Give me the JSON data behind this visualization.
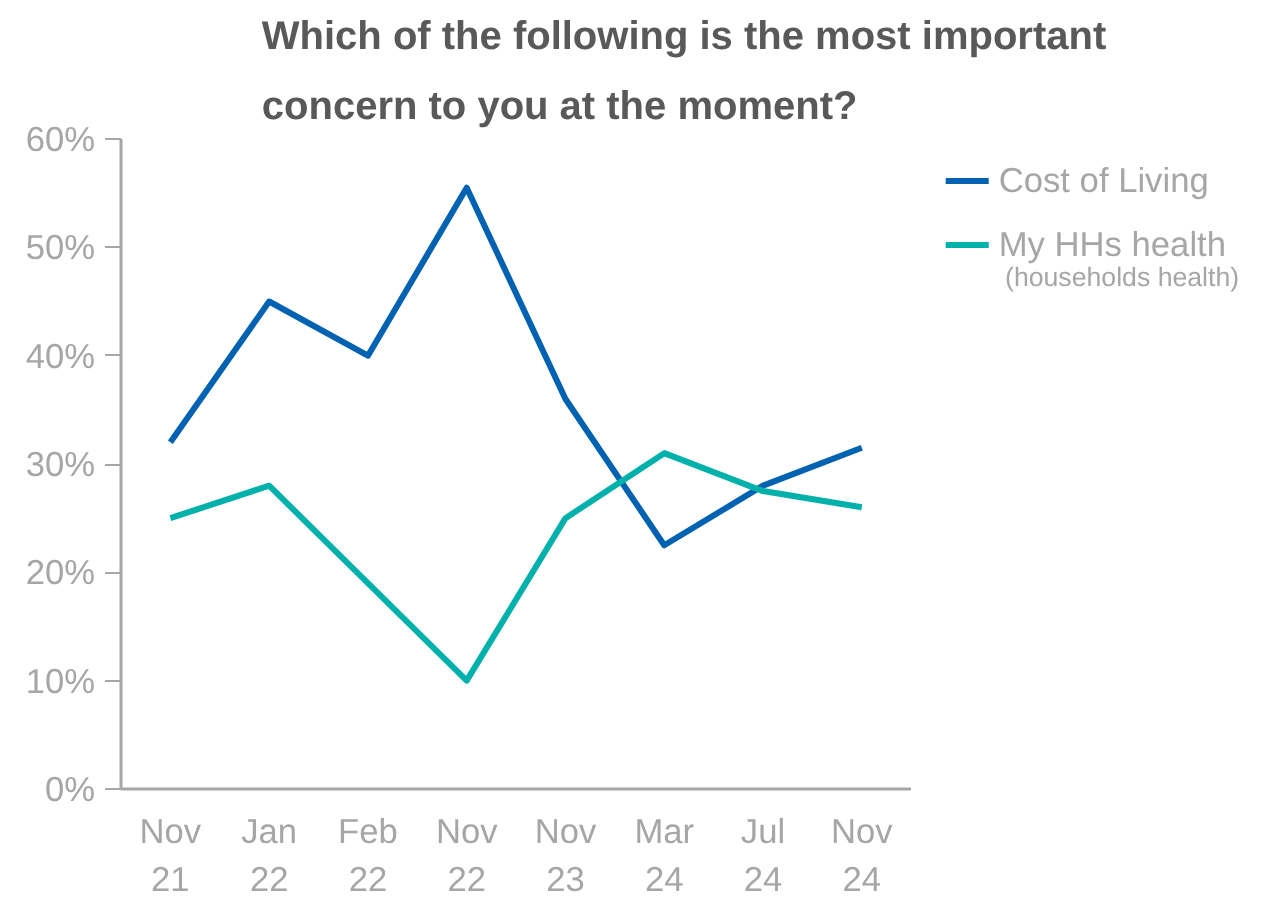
{
  "chart_data": {
    "type": "line",
    "title": "Which of the following is the most important\nconcern to you at the moment?",
    "categories": [
      "Nov\n21",
      "Jan\n22",
      "Feb\n22",
      "Nov\n22",
      "Nov\n23",
      "Mar\n24",
      "Jul\n24",
      "Nov\n24"
    ],
    "series": [
      {
        "name": "Cost of Living",
        "color": "#0062b1",
        "values": [
          32,
          45,
          40,
          55.5,
          36,
          22.5,
          28,
          31.5
        ]
      },
      {
        "name": "My HHs health",
        "color": "#00b0aa",
        "values": [
          25,
          28,
          19,
          10,
          25,
          31,
          27.5,
          26
        ]
      }
    ],
    "annotations": [
      "(households health)"
    ],
    "ylim": [
      0,
      60
    ],
    "yticks": [
      {
        "value": 0,
        "label": "0%"
      },
      {
        "value": 10,
        "label": "10%"
      },
      {
        "value": 20,
        "label": "20%"
      },
      {
        "value": 30,
        "label": "30%"
      },
      {
        "value": 40,
        "label": "40%"
      },
      {
        "value": 50,
        "label": "50%"
      },
      {
        "value": 60,
        "label": "60%"
      }
    ],
    "grid": false,
    "legend": "top right",
    "marker": "none",
    "line_style": "solid"
  }
}
